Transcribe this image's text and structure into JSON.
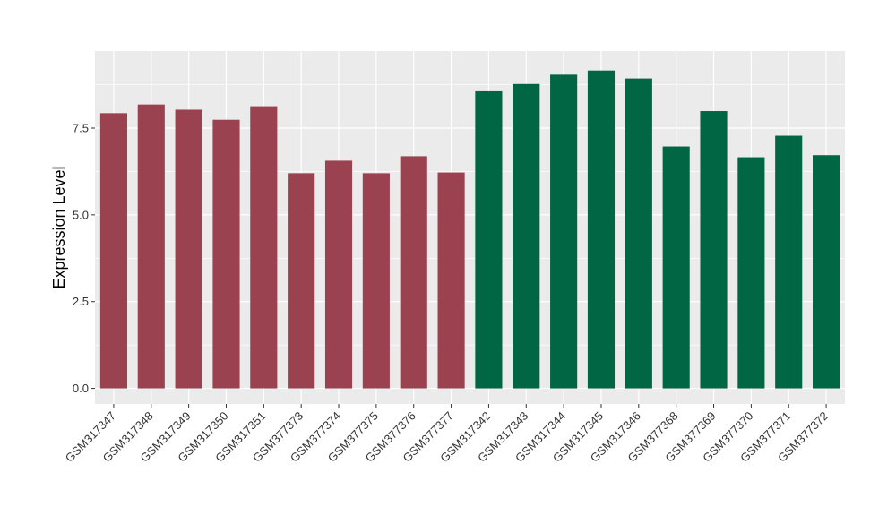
{
  "chart_data": {
    "type": "bar",
    "title": "",
    "xlabel": "",
    "ylabel": "Expression Level",
    "ylim": [
      -0.45,
      9.72
    ],
    "yticks": [
      0.0,
      2.5,
      5.0,
      7.5
    ],
    "ytick_labels": [
      "0.0",
      "2.5",
      "5.0",
      "7.5"
    ],
    "grid": true,
    "legend": "none",
    "categories": [
      "GSM317347",
      "GSM317348",
      "GSM317349",
      "GSM317350",
      "GSM317351",
      "GSM377373",
      "GSM377374",
      "GSM377375",
      "GSM377376",
      "GSM377377",
      "GSM317342",
      "GSM317343",
      "GSM317344",
      "GSM317345",
      "GSM317346",
      "GSM377368",
      "GSM377369",
      "GSM377370",
      "GSM377371",
      "GSM377372"
    ],
    "values": [
      7.93,
      8.18,
      8.03,
      7.74,
      8.13,
      6.2,
      6.56,
      6.2,
      6.69,
      6.22,
      8.56,
      8.77,
      9.04,
      9.16,
      8.93,
      6.97,
      7.99,
      6.66,
      7.28,
      6.72
    ],
    "bar_colors": [
      "#9b4250",
      "#9b4250",
      "#9b4250",
      "#9b4250",
      "#9b4250",
      "#9b4250",
      "#9b4250",
      "#9b4250",
      "#9b4250",
      "#9b4250",
      "#006644",
      "#006644",
      "#006644",
      "#006644",
      "#006644",
      "#006644",
      "#006644",
      "#006644",
      "#006644",
      "#006644"
    ],
    "panel_color": "#ebebeb",
    "grid_color": "#ffffff"
  }
}
